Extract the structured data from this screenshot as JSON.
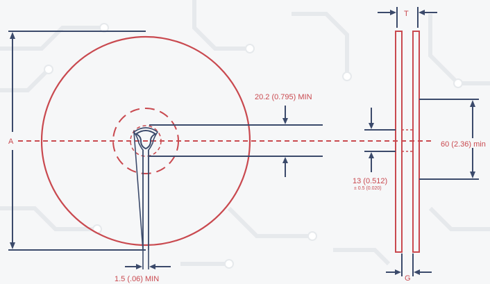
{
  "diagram": {
    "labels": {
      "a": "A",
      "t": "T",
      "g": "G",
      "arbor_min": "20.2 (0.795) MIN",
      "hub": "60 (2.36) min",
      "arbor_hole": "13 (0.512)",
      "arbor_tol": "± 0.5 (0.020)",
      "slot": "1.5 (.06) MIN"
    },
    "colors": {
      "outline": "#c9494f",
      "dimension": "#3b4a6b",
      "background": "#f6f7f8"
    }
  }
}
